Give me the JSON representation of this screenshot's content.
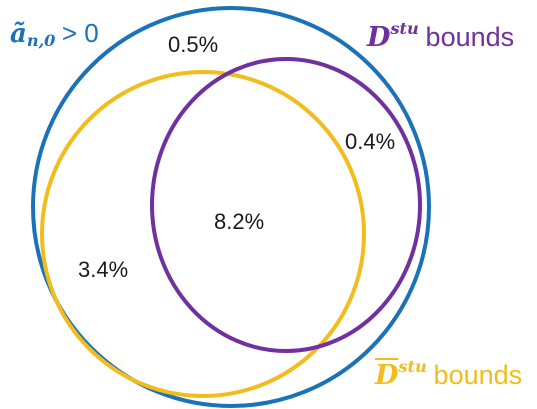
{
  "colors": {
    "outer": "#1a73b8",
    "purple": "#7030a0",
    "gold": "#f2bc1d"
  },
  "sets": {
    "outer": {
      "symbol": "ã",
      "subscript": "n,0",
      "relation": "> 0"
    },
    "purple": {
      "symbol": "D",
      "superscript": "stu",
      "word": "bounds"
    },
    "gold": {
      "symbol": "D",
      "superscript": "stu",
      "word": "bounds"
    }
  },
  "regions": {
    "outer_only": "0.5%",
    "purple_only": "0.4%",
    "intersection": "8.2%",
    "gold_only": "3.4%"
  }
}
